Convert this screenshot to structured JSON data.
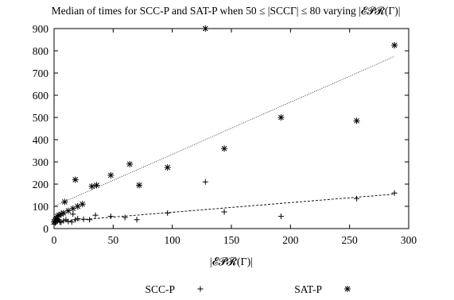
{
  "chart_data": {
    "type": "scatter",
    "title": "Median of times for SCC-P and SAT-P when 50 ≤ |SCCΓ| ≤ 80 varying |𝓔𝓟𝓡(Γ)|",
    "xlabel": "|𝓔𝓟𝓡(Γ)|",
    "ylabel": "",
    "xlim": [
      0,
      300
    ],
    "ylim": [
      0,
      900
    ],
    "xticks": [
      "0",
      "50",
      "100",
      "150",
      "200",
      "250",
      "300"
    ],
    "yticks": [
      "0",
      "100",
      "200",
      "300",
      "400",
      "500",
      "600",
      "700",
      "800",
      "900"
    ],
    "grid": false,
    "legend_position": "bottom",
    "series": [
      {
        "name": "SCC-P",
        "marker": "plus",
        "points": [
          [
            0,
            20
          ],
          [
            1,
            25
          ],
          [
            2,
            30
          ],
          [
            3,
            35
          ],
          [
            4,
            40
          ],
          [
            5,
            30
          ],
          [
            6,
            28
          ],
          [
            8,
            35
          ],
          [
            10,
            40
          ],
          [
            12,
            32
          ],
          [
            15,
            30
          ],
          [
            16,
            65
          ],
          [
            18,
            40
          ],
          [
            20,
            45
          ],
          [
            25,
            42
          ],
          [
            30,
            40
          ],
          [
            35,
            60
          ],
          [
            48,
            55
          ],
          [
            60,
            50
          ],
          [
            70,
            40
          ],
          [
            96,
            70
          ],
          [
            128,
            210
          ],
          [
            144,
            75
          ],
          [
            192,
            55
          ],
          [
            256,
            135
          ],
          [
            288,
            160
          ]
        ],
        "trend": [
          [
            0,
            30
          ],
          [
            288,
            155
          ]
        ]
      },
      {
        "name": "SAT-P",
        "marker": "star",
        "points": [
          [
            0,
            30
          ],
          [
            1,
            40
          ],
          [
            2,
            45
          ],
          [
            3,
            55
          ],
          [
            4,
            60
          ],
          [
            6,
            65
          ],
          [
            8,
            70
          ],
          [
            9,
            120
          ],
          [
            12,
            80
          ],
          [
            16,
            90
          ],
          [
            18,
            220
          ],
          [
            20,
            100
          ],
          [
            24,
            110
          ],
          [
            32,
            190
          ],
          [
            36,
            195
          ],
          [
            48,
            240
          ],
          [
            64,
            290
          ],
          [
            72,
            195
          ],
          [
            96,
            275
          ],
          [
            128,
            900
          ],
          [
            144,
            360
          ],
          [
            192,
            500
          ],
          [
            256,
            485
          ],
          [
            288,
            825
          ]
        ],
        "trend": [
          [
            0,
            100
          ],
          [
            288,
            775
          ]
        ]
      }
    ]
  }
}
